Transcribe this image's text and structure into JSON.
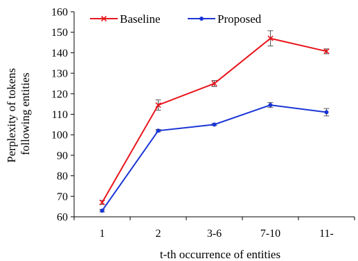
{
  "chart_data": {
    "type": "line",
    "categories": [
      "1",
      "2",
      "3-6",
      "7-10",
      "11-"
    ],
    "xlabel": "t-th occurrence of entities",
    "ylabel": [
      "Perplexity of tokens",
      "following entities"
    ],
    "ylim": [
      60,
      160
    ],
    "yticks": [
      "60",
      "70",
      "80",
      "90",
      "100",
      "110",
      "120",
      "130",
      "140",
      "150",
      "160"
    ],
    "legend_position": "top-left",
    "grid": false,
    "series": [
      {
        "name": "Baseline",
        "color": "#e8141b",
        "marker": "x",
        "values": [
          67,
          114.5,
          125,
          147,
          140.7
        ],
        "errors": [
          1,
          2.5,
          1.5,
          3.7,
          1.2
        ]
      },
      {
        "name": "Proposed",
        "color": "#1a35d6",
        "marker": "circle",
        "values": [
          63,
          102,
          105,
          114.5,
          111
        ],
        "errors": [
          0.6,
          0.6,
          0.5,
          1.2,
          1.8
        ]
      }
    ]
  }
}
